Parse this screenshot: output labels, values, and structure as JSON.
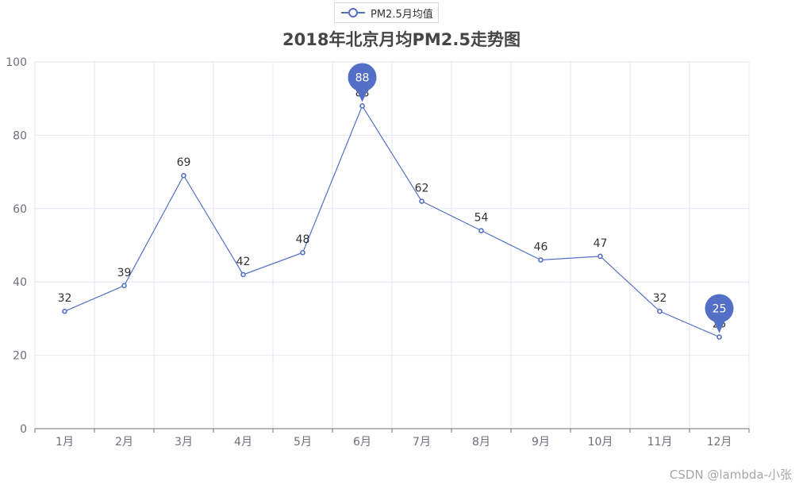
{
  "legend": {
    "label": "PM2.5月均值"
  },
  "title": "2018年北京月均PM2.5走势图",
  "watermark": "CSDN @lambda-小张",
  "colors": {
    "series": "#5470c6",
    "grid": "#e0e6f1",
    "axis": "#6e7079",
    "label": "#333333"
  },
  "chart_data": {
    "type": "line",
    "title": "2018年北京月均PM2.5走势图",
    "categories": [
      "1月",
      "2月",
      "3月",
      "4月",
      "5月",
      "6月",
      "7月",
      "8月",
      "9月",
      "10月",
      "11月",
      "12月"
    ],
    "series": [
      {
        "name": "PM2.5月均值",
        "values": [
          32,
          39,
          69,
          42,
          48,
          88,
          62,
          54,
          46,
          47,
          32,
          25
        ]
      }
    ],
    "ylim": [
      0,
      100
    ],
    "yticks": [
      0,
      20,
      40,
      60,
      80,
      100
    ],
    "grid": true,
    "legend_position": "top-center",
    "markpoints": [
      {
        "type": "max",
        "category": "6月",
        "value": 88
      },
      {
        "type": "min",
        "category": "12月",
        "value": 25
      }
    ]
  }
}
